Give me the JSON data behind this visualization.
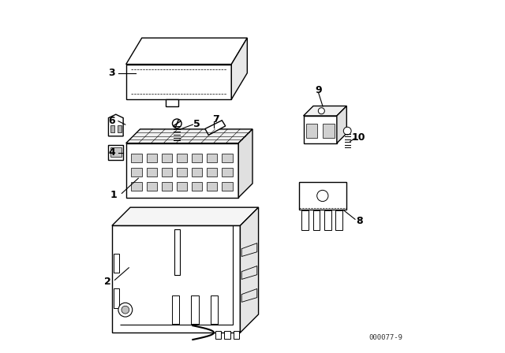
{
  "bg_color": "#ffffff",
  "line_color": "#000000",
  "fig_width": 6.4,
  "fig_height": 4.48,
  "dpi": 100,
  "watermark": "000077-9"
}
